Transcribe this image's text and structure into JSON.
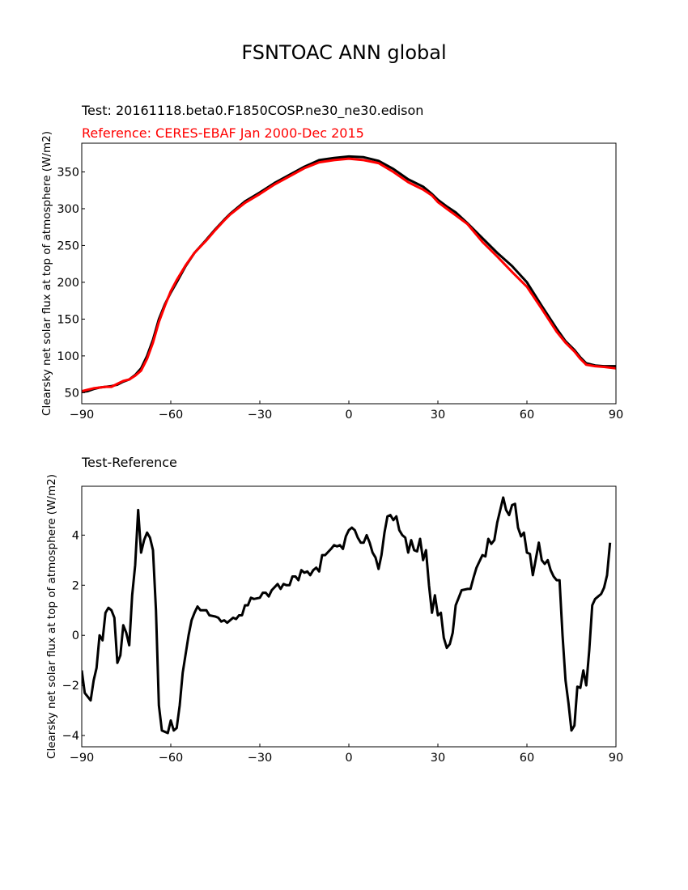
{
  "figure": {
    "title": "FSNTOAC ANN global",
    "colors": {
      "test": "#000000",
      "reference": "#ff0000"
    }
  },
  "chart_data": [
    {
      "type": "line",
      "subtitle_test": "Test: 20161118.beta0.F1850COSP.ne30_ne30.edison",
      "subtitle_reference": "Reference: CERES-EBAF Jan 2000-Dec 2015",
      "ylabel": "Clearsky net solar flux at top of atmosphere (W/m2)",
      "xlim": [
        -90,
        90
      ],
      "ylim": [
        35,
        389
      ],
      "xticks": [
        -90,
        -60,
        -30,
        0,
        30,
        60,
        90
      ],
      "yticks": [
        50,
        100,
        150,
        200,
        250,
        300,
        350
      ],
      "grid": false,
      "series": [
        {
          "color": "#000000",
          "points": [
            [
              -90,
              51
            ],
            [
              -88,
              52
            ],
            [
              -86,
              55
            ],
            [
              -84,
              57
            ],
            [
              -82,
              58
            ],
            [
              -80,
              59
            ],
            [
              -78,
              61
            ],
            [
              -76,
              65
            ],
            [
              -74,
              68
            ],
            [
              -72,
              74
            ],
            [
              -70,
              83
            ],
            [
              -68,
              100
            ],
            [
              -66,
              122
            ],
            [
              -64,
              150
            ],
            [
              -62,
              170
            ],
            [
              -60,
              186
            ],
            [
              -58,
              200
            ],
            [
              -55,
              222
            ],
            [
              -52,
              240
            ],
            [
              -48,
              258
            ],
            [
              -45,
              272
            ],
            [
              -42,
              285
            ],
            [
              -40,
              293
            ],
            [
              -35,
              310
            ],
            [
              -30,
              322
            ],
            [
              -25,
              335
            ],
            [
              -20,
              346
            ],
            [
              -15,
              357
            ],
            [
              -10,
              366
            ],
            [
              -5,
              369
            ],
            [
              0,
              371
            ],
            [
              5,
              370
            ],
            [
              10,
              365
            ],
            [
              15,
              354
            ],
            [
              20,
              340
            ],
            [
              25,
              330
            ],
            [
              28,
              320
            ],
            [
              30,
              312
            ],
            [
              33,
              303
            ],
            [
              36,
              295
            ],
            [
              40,
              280
            ],
            [
              45,
              260
            ],
            [
              50,
              240
            ],
            [
              55,
              222
            ],
            [
              60,
              200
            ],
            [
              65,
              168
            ],
            [
              70,
              137
            ],
            [
              73,
              120
            ],
            [
              76,
              108
            ],
            [
              78,
              98
            ],
            [
              80,
              90
            ],
            [
              83,
              87
            ],
            [
              86,
              86
            ],
            [
              90,
              86
            ]
          ]
        },
        {
          "color": "#ff0000",
          "points": [
            [
              -90,
              52
            ],
            [
              -88,
              54
            ],
            [
              -86,
              56
            ],
            [
              -84,
              57
            ],
            [
              -82,
              58
            ],
            [
              -80,
              58
            ],
            [
              -78,
              62
            ],
            [
              -76,
              66
            ],
            [
              -74,
              68
            ],
            [
              -72,
              73
            ],
            [
              -70,
              80
            ],
            [
              -68,
              96
            ],
            [
              -66,
              118
            ],
            [
              -64,
              146
            ],
            [
              -62,
              168
            ],
            [
              -60,
              188
            ],
            [
              -58,
              203
            ],
            [
              -55,
              223
            ],
            [
              -52,
              240
            ],
            [
              -48,
              257
            ],
            [
              -45,
              271
            ],
            [
              -42,
              284
            ],
            [
              -40,
              292
            ],
            [
              -35,
              308
            ],
            [
              -30,
              320
            ],
            [
              -25,
              333
            ],
            [
              -20,
              344
            ],
            [
              -15,
              355
            ],
            [
              -10,
              363
            ],
            [
              -5,
              366
            ],
            [
              0,
              368
            ],
            [
              5,
              366
            ],
            [
              10,
              362
            ],
            [
              15,
              350
            ],
            [
              20,
              336
            ],
            [
              25,
              326
            ],
            [
              28,
              318
            ],
            [
              30,
              309
            ],
            [
              33,
              300
            ],
            [
              36,
              291
            ],
            [
              40,
              279
            ],
            [
              45,
              255
            ],
            [
              50,
              235
            ],
            [
              55,
              214
            ],
            [
              60,
              194
            ],
            [
              65,
              164
            ],
            [
              70,
              133
            ],
            [
              73,
              118
            ],
            [
              76,
              106
            ],
            [
              78,
              96
            ],
            [
              80,
              88
            ],
            [
              83,
              86
            ],
            [
              86,
              85
            ],
            [
              90,
              83
            ]
          ]
        }
      ]
    },
    {
      "type": "line",
      "subtitle": "Test-Reference",
      "ylabel": "Clearsky net solar flux at top of atmosphere (W/m2)",
      "xlim": [
        -90,
        90
      ],
      "ylim": [
        -4.45,
        5.95
      ],
      "xticks": [
        -90,
        -60,
        -30,
        0,
        30,
        60,
        90
      ],
      "yticks": [
        -4,
        -2,
        0,
        2,
        4
      ],
      "grid": false,
      "series": [
        {
          "color": "#000000",
          "points": [
            [
              -90,
              -1.4
            ],
            [
              -89,
              -2.3
            ],
            [
              -87,
              -2.6
            ],
            [
              -86,
              -1.8
            ],
            [
              -85,
              -1.3
            ],
            [
              -84,
              0
            ],
            [
              -83,
              -0.2
            ],
            [
              -82,
              0.9
            ],
            [
              -81,
              1.1
            ],
            [
              -80,
              1
            ],
            [
              -79,
              0.7
            ],
            [
              -78,
              -1.1
            ],
            [
              -77,
              -0.8
            ],
            [
              -76,
              0.4
            ],
            [
              -75,
              0.1
            ],
            [
              -74,
              -0.4
            ],
            [
              -73,
              1.6
            ],
            [
              -72,
              2.8
            ],
            [
              -71,
              5
            ],
            [
              -70,
              3.3
            ],
            [
              -69,
              3.8
            ],
            [
              -68,
              4.1
            ],
            [
              -67,
              3.9
            ],
            [
              -66,
              3.4
            ],
            [
              -65,
              1
            ],
            [
              -64,
              -2.8
            ],
            [
              -63,
              -3.8
            ],
            [
              -61,
              -3.9
            ],
            [
              -60,
              -3.4
            ],
            [
              -59,
              -3.8
            ],
            [
              -58,
              -3.7
            ],
            [
              -57,
              -2.8
            ],
            [
              -56,
              -1.5
            ],
            [
              -54,
              0
            ],
            [
              -53,
              0.6
            ],
            [
              -52,
              0.9
            ],
            [
              -51,
              1.15
            ],
            [
              -50,
              1
            ],
            [
              -48,
              1
            ],
            [
              -47,
              0.8
            ],
            [
              -45,
              0.75
            ],
            [
              -44,
              0.7
            ],
            [
              -43,
              0.55
            ],
            [
              -42,
              0.6
            ],
            [
              -41,
              0.5
            ],
            [
              -39,
              0.7
            ],
            [
              -38,
              0.65
            ],
            [
              -37,
              0.8
            ],
            [
              -36,
              0.8
            ],
            [
              -35,
              1.2
            ],
            [
              -34,
              1.2
            ],
            [
              -33,
              1.5
            ],
            [
              -32,
              1.45
            ],
            [
              -30,
              1.5
            ],
            [
              -29,
              1.7
            ],
            [
              -28,
              1.7
            ],
            [
              -27,
              1.55
            ],
            [
              -26,
              1.8
            ],
            [
              -24,
              2.05
            ],
            [
              -23,
              1.85
            ],
            [
              -22,
              2.05
            ],
            [
              -21,
              2
            ],
            [
              -20,
              2
            ],
            [
              -19,
              2.35
            ],
            [
              -18,
              2.35
            ],
            [
              -17,
              2.2
            ],
            [
              -16,
              2.6
            ],
            [
              -15,
              2.5
            ],
            [
              -14,
              2.55
            ],
            [
              -13,
              2.4
            ],
            [
              -12,
              2.6
            ],
            [
              -11,
              2.7
            ],
            [
              -10,
              2.55
            ],
            [
              -9,
              3.2
            ],
            [
              -8,
              3.2
            ],
            [
              -6,
              3.45
            ],
            [
              -5,
              3.6
            ],
            [
              -4,
              3.55
            ],
            [
              -3,
              3.6
            ],
            [
              -2,
              3.45
            ],
            [
              -1,
              3.95
            ],
            [
              0,
              4.2
            ],
            [
              1,
              4.3
            ],
            [
              2,
              4.2
            ],
            [
              3,
              3.9
            ],
            [
              4,
              3.7
            ],
            [
              5,
              3.7
            ],
            [
              6,
              4
            ],
            [
              7,
              3.7
            ],
            [
              8,
              3.3
            ],
            [
              9,
              3.1
            ],
            [
              10,
              2.65
            ],
            [
              11,
              3.2
            ],
            [
              12,
              4.1
            ],
            [
              13,
              4.75
            ],
            [
              14,
              4.8
            ],
            [
              15,
              4.6
            ],
            [
              16,
              4.75
            ],
            [
              17,
              4.2
            ],
            [
              18,
              4
            ],
            [
              19,
              3.9
            ],
            [
              20,
              3.3
            ],
            [
              21,
              3.8
            ],
            [
              22,
              3.4
            ],
            [
              23,
              3.35
            ],
            [
              24,
              3.85
            ],
            [
              25,
              3
            ],
            [
              26,
              3.4
            ],
            [
              27,
              2
            ],
            [
              28,
              0.9
            ],
            [
              29,
              1.6
            ],
            [
              30,
              0.8
            ],
            [
              31,
              0.9
            ],
            [
              32,
              -0.1
            ],
            [
              33,
              -0.5
            ],
            [
              34,
              -0.35
            ],
            [
              35,
              0.1
            ],
            [
              36,
              1.2
            ],
            [
              37,
              1.5
            ],
            [
              38,
              1.8
            ],
            [
              40,
              1.85
            ],
            [
              41,
              1.85
            ],
            [
              42,
              2.3
            ],
            [
              43,
              2.7
            ],
            [
              45,
              3.2
            ],
            [
              46,
              3.15
            ],
            [
              47,
              3.85
            ],
            [
              48,
              3.65
            ],
            [
              49,
              3.8
            ],
            [
              50,
              4.5
            ],
            [
              51,
              5
            ],
            [
              52,
              5.5
            ],
            [
              53,
              5
            ],
            [
              54,
              4.8
            ],
            [
              55,
              5.2
            ],
            [
              56,
              5.25
            ],
            [
              57,
              4.3
            ],
            [
              58,
              3.95
            ],
            [
              59,
              4.1
            ],
            [
              60,
              3.3
            ],
            [
              61,
              3.25
            ],
            [
              62,
              2.4
            ],
            [
              63,
              3.05
            ],
            [
              64,
              3.7
            ],
            [
              65,
              3
            ],
            [
              66,
              2.85
            ],
            [
              67,
              3
            ],
            [
              68,
              2.6
            ],
            [
              69,
              2.35
            ],
            [
              70,
              2.2
            ],
            [
              71,
              2.2
            ],
            [
              72,
              0
            ],
            [
              73,
              -1.8
            ],
            [
              74,
              -2.7
            ],
            [
              75,
              -3.8
            ],
            [
              76,
              -3.6
            ],
            [
              77,
              -2.05
            ],
            [
              78,
              -2.1
            ],
            [
              79,
              -1.4
            ],
            [
              80,
              -2
            ],
            [
              81,
              -0.6
            ],
            [
              82,
              1.2
            ],
            [
              83,
              1.45
            ],
            [
              84,
              1.55
            ],
            [
              85,
              1.65
            ],
            [
              86,
              1.9
            ],
            [
              87,
              2.4
            ],
            [
              88,
              3.7
            ]
          ]
        }
      ]
    }
  ]
}
